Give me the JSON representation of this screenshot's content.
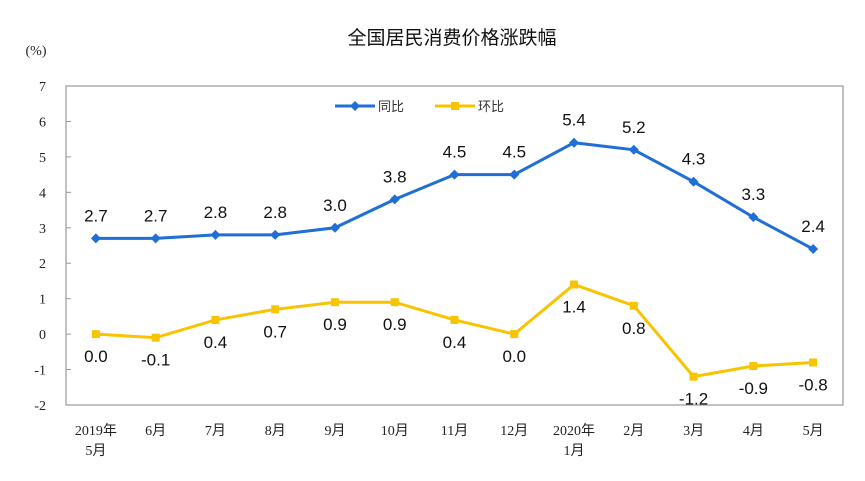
{
  "chart_data": {
    "type": "line",
    "title": "全国居民消费价格涨跌幅",
    "ylabel": "(%)",
    "ylim": [
      -2,
      7
    ],
    "yticks": [
      -2,
      -1,
      0,
      1,
      2,
      3,
      4,
      5,
      6,
      7
    ],
    "categories": [
      [
        "2019年",
        "5月"
      ],
      [
        "6月"
      ],
      [
        "7月"
      ],
      [
        "8月"
      ],
      [
        "9月"
      ],
      [
        "10月"
      ],
      [
        "11月"
      ],
      [
        "12月"
      ],
      [
        "2020年",
        "1月"
      ],
      [
        "2月"
      ],
      [
        "3月"
      ],
      [
        "4月"
      ],
      [
        "5月"
      ]
    ],
    "grid": false,
    "legend": "top-center",
    "series": [
      {
        "name": "同比",
        "color": "#1f6fd6",
        "marker": "diamond",
        "values": [
          2.7,
          2.7,
          2.8,
          2.8,
          3.0,
          3.8,
          4.5,
          4.5,
          5.4,
          5.2,
          4.3,
          3.3,
          2.4
        ],
        "labels": [
          "2.7",
          "2.7",
          "2.8",
          "2.8",
          "3.0",
          "3.8",
          "4.5",
          "4.5",
          "5.4",
          "5.2",
          "4.3",
          "3.3",
          "2.4"
        ]
      },
      {
        "name": "环比",
        "color": "#f8c300",
        "marker": "square",
        "values": [
          0.0,
          -0.1,
          0.4,
          0.7,
          0.9,
          0.9,
          0.4,
          0.0,
          1.4,
          0.8,
          -1.2,
          -0.9,
          -0.8
        ],
        "labels": [
          "0.0",
          "-0.1",
          "0.4",
          "0.7",
          "0.9",
          "0.9",
          "0.4",
          "0.0",
          "1.4",
          "0.8",
          "-1.2",
          "-0.9",
          "-0.8"
        ]
      }
    ]
  }
}
